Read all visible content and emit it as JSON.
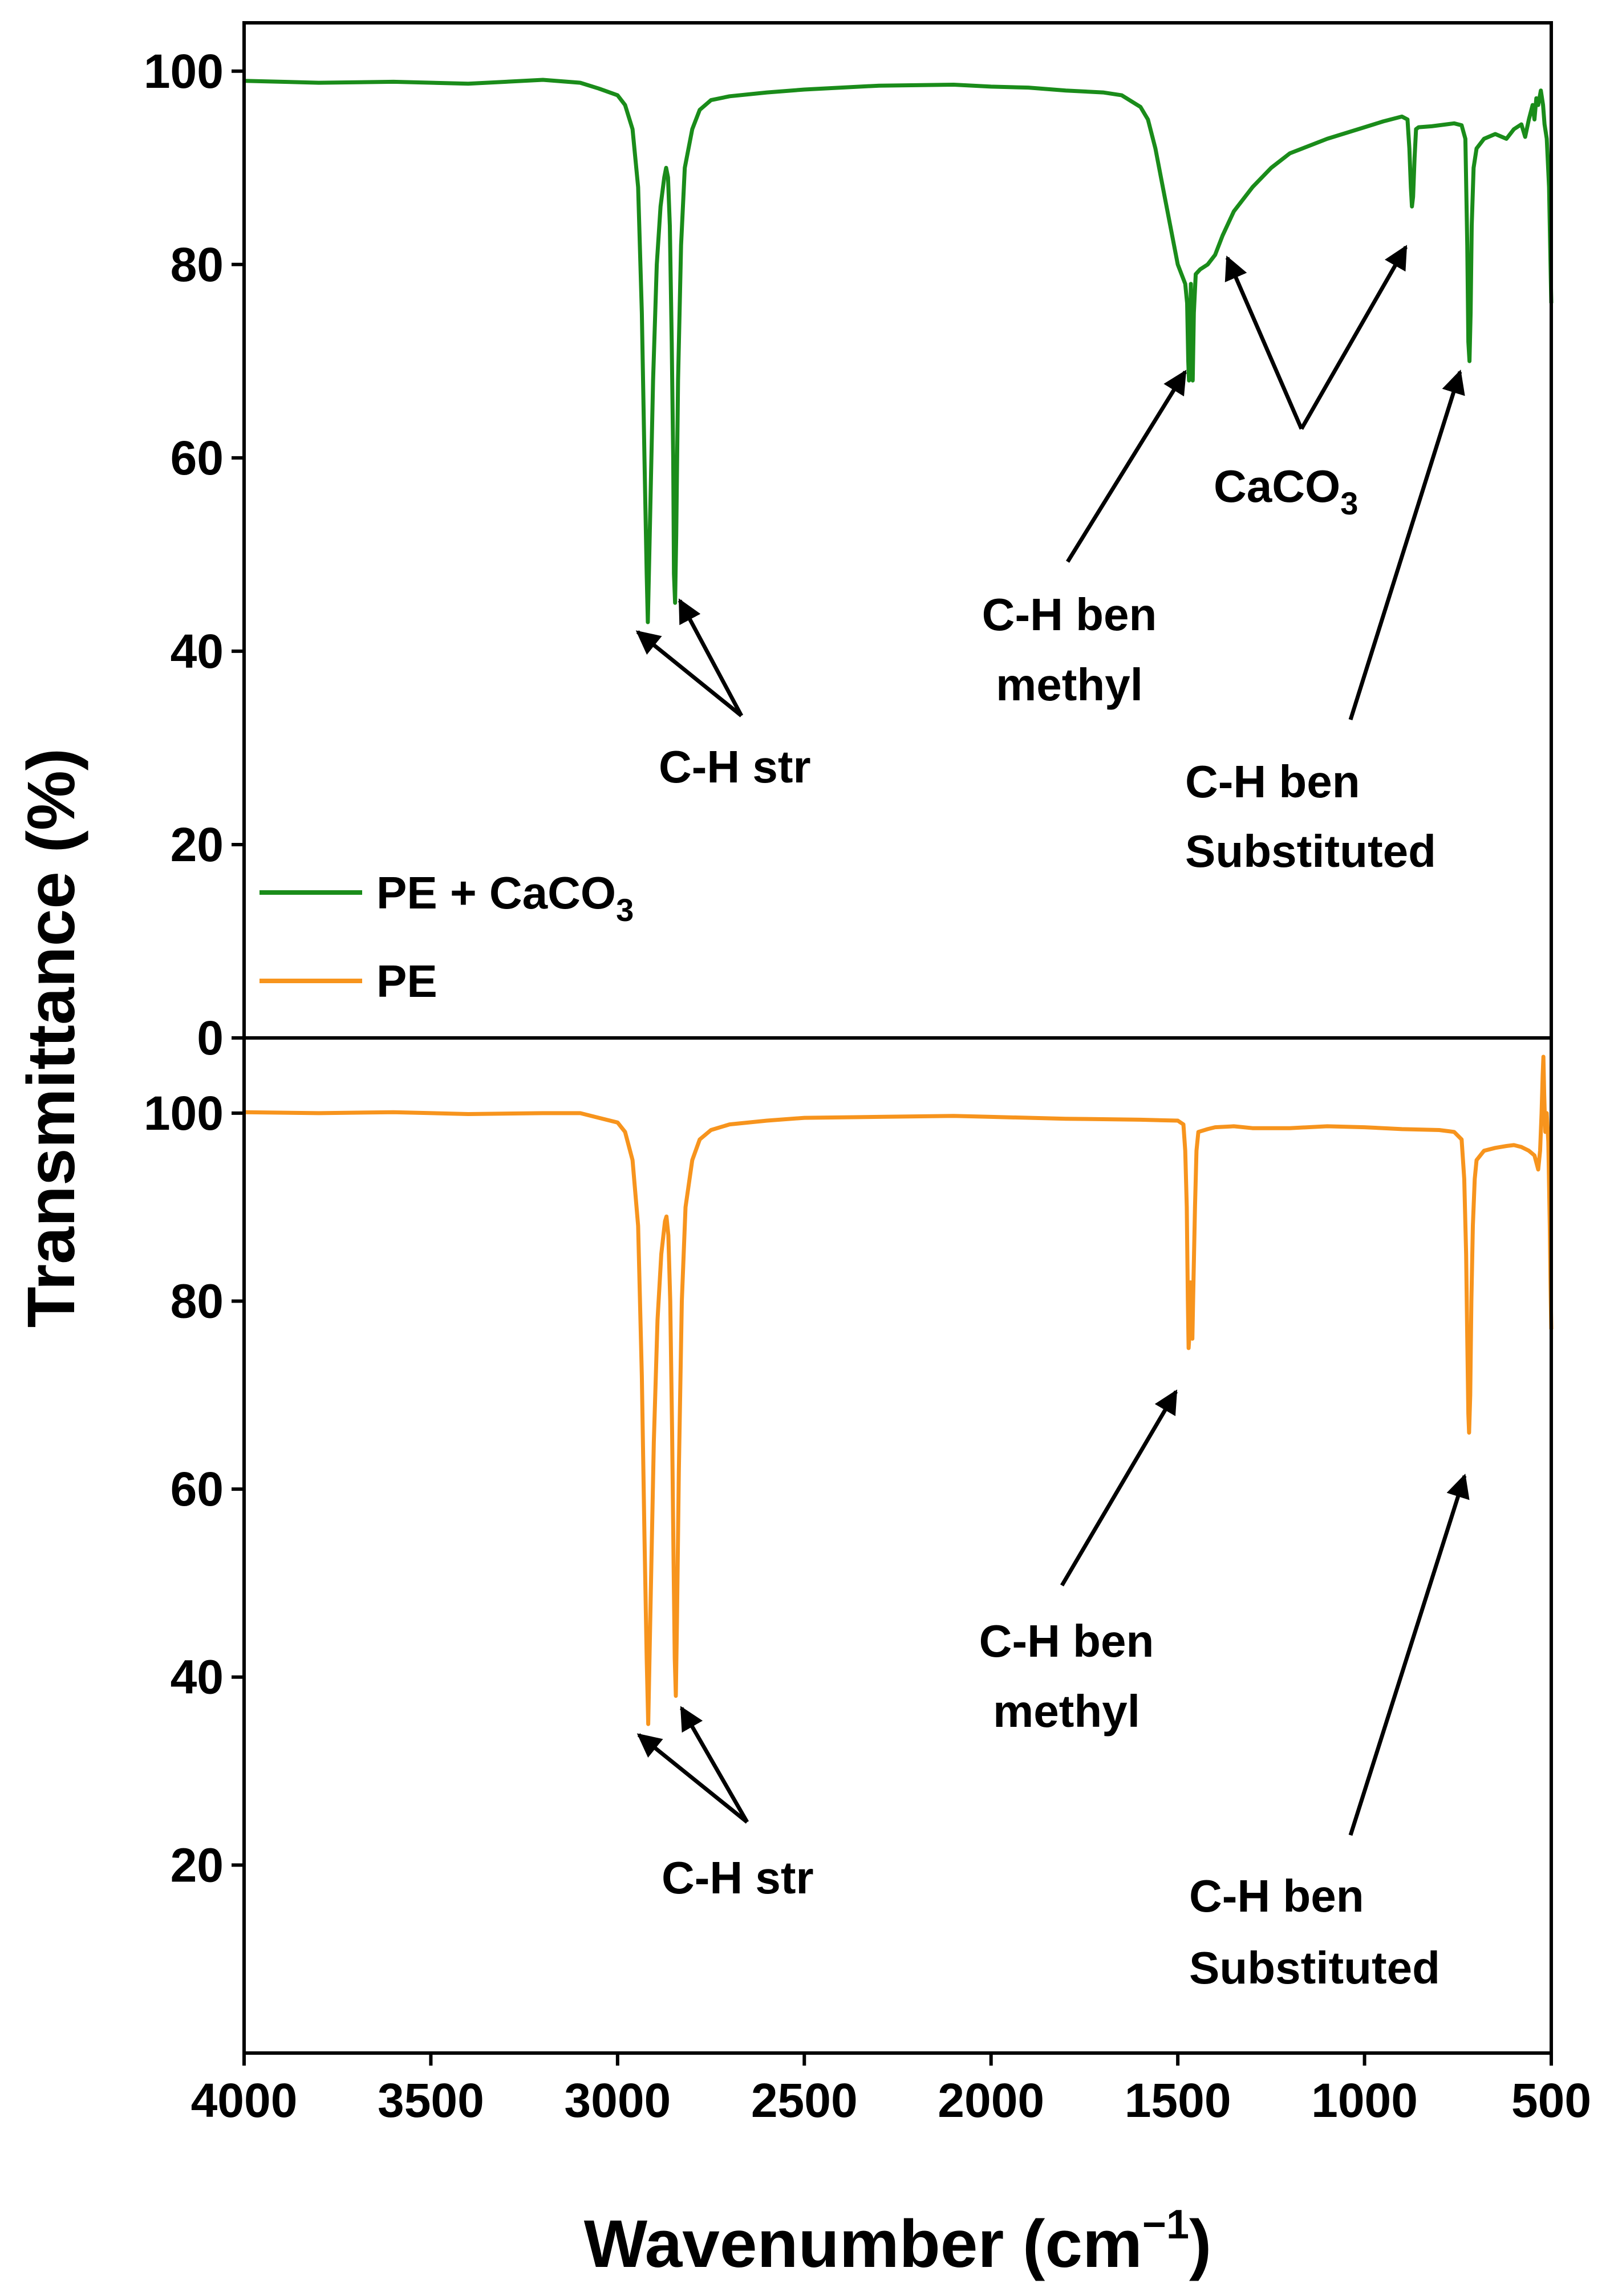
{
  "chart_data": {
    "type": "line",
    "xlabel_main": "Wavenumber (cm",
    "xlabel_sup": "−1",
    "xlabel_close": ")",
    "ylabel": "Transmittance (%)",
    "xlim": [
      4000,
      500
    ],
    "x_ticks": [
      "4000",
      "3500",
      "3000",
      "2500",
      "2000",
      "1500",
      "1000",
      "500"
    ],
    "x_tick_values": [
      4000,
      3500,
      3000,
      2500,
      2000,
      1500,
      1000,
      500
    ],
    "panels": [
      {
        "series_name": "PE + CaCO3",
        "color": "#1a8c1a",
        "ylim": [
          0,
          105
        ],
        "y_ticks": [
          "0",
          "20",
          "40",
          "60",
          "80",
          "100"
        ],
        "y_tick_values": [
          0,
          20,
          40,
          60,
          80,
          100
        ],
        "points": [
          [
            4000,
            99.0
          ],
          [
            3800,
            98.8
          ],
          [
            3600,
            98.9
          ],
          [
            3400,
            98.7
          ],
          [
            3200,
            99.1
          ],
          [
            3100,
            98.8
          ],
          [
            3050,
            98.2
          ],
          [
            3000,
            97.5
          ],
          [
            2980,
            96.5
          ],
          [
            2960,
            94
          ],
          [
            2945,
            88
          ],
          [
            2935,
            75
          ],
          [
            2928,
            60
          ],
          [
            2922,
            48
          ],
          [
            2919,
            43
          ],
          [
            2915,
            50
          ],
          [
            2905,
            68
          ],
          [
            2895,
            80
          ],
          [
            2885,
            86
          ],
          [
            2875,
            89
          ],
          [
            2870,
            90
          ],
          [
            2865,
            89
          ],
          [
            2860,
            84
          ],
          [
            2855,
            72
          ],
          [
            2851,
            60
          ],
          [
            2849,
            48
          ],
          [
            2846,
            45
          ],
          [
            2843,
            52
          ],
          [
            2838,
            68
          ],
          [
            2830,
            82
          ],
          [
            2820,
            90
          ],
          [
            2800,
            94
          ],
          [
            2780,
            96
          ],
          [
            2750,
            97
          ],
          [
            2700,
            97.4
          ],
          [
            2600,
            97.8
          ],
          [
            2500,
            98.1
          ],
          [
            2300,
            98.5
          ],
          [
            2100,
            98.6
          ],
          [
            2000,
            98.4
          ],
          [
            1900,
            98.3
          ],
          [
            1800,
            98.0
          ],
          [
            1700,
            97.8
          ],
          [
            1650,
            97.5
          ],
          [
            1600,
            96.3
          ],
          [
            1580,
            95
          ],
          [
            1560,
            92
          ],
          [
            1540,
            88
          ],
          [
            1520,
            84
          ],
          [
            1500,
            80
          ],
          [
            1480,
            78
          ],
          [
            1475,
            76
          ],
          [
            1472,
            70
          ],
          [
            1470,
            68
          ],
          [
            1467,
            72
          ],
          [
            1465,
            78
          ],
          [
            1462,
            71
          ],
          [
            1460,
            68
          ],
          [
            1457,
            75
          ],
          [
            1452,
            79
          ],
          [
            1440,
            79.5
          ],
          [
            1420,
            80
          ],
          [
            1400,
            81
          ],
          [
            1380,
            83
          ],
          [
            1350,
            85.5
          ],
          [
            1300,
            88
          ],
          [
            1250,
            90
          ],
          [
            1200,
            91.5
          ],
          [
            1100,
            93
          ],
          [
            1000,
            94.2
          ],
          [
            950,
            94.8
          ],
          [
            900,
            95.3
          ],
          [
            885,
            95
          ],
          [
            880,
            92
          ],
          [
            876,
            88
          ],
          [
            873,
            86
          ],
          [
            870,
            87
          ],
          [
            866,
            91
          ],
          [
            862,
            94
          ],
          [
            855,
            94.2
          ],
          [
            820,
            94.3
          ],
          [
            780,
            94.5
          ],
          [
            760,
            94.6
          ],
          [
            740,
            94.4
          ],
          [
            730,
            93
          ],
          [
            725,
            82
          ],
          [
            722,
            72
          ],
          [
            719,
            70
          ],
          [
            716,
            75
          ],
          [
            713,
            84
          ],
          [
            708,
            90
          ],
          [
            700,
            92
          ],
          [
            680,
            93
          ],
          [
            650,
            93.5
          ],
          [
            620,
            93
          ],
          [
            600,
            94
          ],
          [
            580,
            94.5
          ],
          [
            570,
            93.2
          ],
          [
            560,
            95
          ],
          [
            550,
            96.5
          ],
          [
            545,
            95
          ],
          [
            540,
            97.2
          ],
          [
            535,
            96.5
          ],
          [
            528,
            98
          ],
          [
            522,
            96.5
          ],
          [
            518,
            94.5
          ],
          [
            512,
            93
          ],
          [
            506,
            88
          ],
          [
            502,
            80
          ],
          [
            500,
            76
          ]
        ]
      },
      {
        "series_name": "PE",
        "color": "#f7941d",
        "ylim": [
          0,
          108
        ],
        "y_ticks": [
          "20",
          "40",
          "60",
          "80",
          "100"
        ],
        "y_tick_values": [
          20,
          40,
          60,
          80,
          100
        ],
        "points": [
          [
            4000,
            100.1
          ],
          [
            3800,
            100.0
          ],
          [
            3600,
            100.1
          ],
          [
            3400,
            99.9
          ],
          [
            3200,
            100.0
          ],
          [
            3100,
            100.0
          ],
          [
            3050,
            99.5
          ],
          [
            3000,
            99.0
          ],
          [
            2980,
            98
          ],
          [
            2960,
            95
          ],
          [
            2945,
            88
          ],
          [
            2935,
            72
          ],
          [
            2928,
            55
          ],
          [
            2922,
            42
          ],
          [
            2918,
            35
          ],
          [
            2913,
            45
          ],
          [
            2903,
            65
          ],
          [
            2893,
            78
          ],
          [
            2883,
            85
          ],
          [
            2873,
            88.5
          ],
          [
            2869,
            89
          ],
          [
            2864,
            87
          ],
          [
            2859,
            80
          ],
          [
            2854,
            66
          ],
          [
            2850,
            52
          ],
          [
            2847,
            42
          ],
          [
            2844,
            38
          ],
          [
            2841,
            46
          ],
          [
            2836,
            62
          ],
          [
            2828,
            80
          ],
          [
            2818,
            90
          ],
          [
            2800,
            95
          ],
          [
            2780,
            97.2
          ],
          [
            2750,
            98.2
          ],
          [
            2700,
            98.8
          ],
          [
            2600,
            99.2
          ],
          [
            2500,
            99.5
          ],
          [
            2300,
            99.6
          ],
          [
            2100,
            99.7
          ],
          [
            2000,
            99.6
          ],
          [
            1800,
            99.4
          ],
          [
            1600,
            99.3
          ],
          [
            1500,
            99.2
          ],
          [
            1485,
            98.8
          ],
          [
            1480,
            96
          ],
          [
            1476,
            90
          ],
          [
            1473,
            80
          ],
          [
            1471,
            75
          ],
          [
            1468,
            77
          ],
          [
            1466,
            82
          ],
          [
            1463,
            79
          ],
          [
            1461,
            76
          ],
          [
            1458,
            82
          ],
          [
            1454,
            90
          ],
          [
            1450,
            96
          ],
          [
            1445,
            98
          ],
          [
            1420,
            98.3
          ],
          [
            1400,
            98.5
          ],
          [
            1350,
            98.6
          ],
          [
            1300,
            98.4
          ],
          [
            1200,
            98.4
          ],
          [
            1100,
            98.6
          ],
          [
            1000,
            98.5
          ],
          [
            900,
            98.3
          ],
          [
            800,
            98.2
          ],
          [
            760,
            98.0
          ],
          [
            740,
            97.2
          ],
          [
            733,
            93
          ],
          [
            728,
            85
          ],
          [
            725,
            76
          ],
          [
            722,
            68
          ],
          [
            720,
            66
          ],
          [
            717,
            70
          ],
          [
            714,
            80
          ],
          [
            710,
            88
          ],
          [
            705,
            93
          ],
          [
            700,
            95
          ],
          [
            680,
            96
          ],
          [
            650,
            96.3
          ],
          [
            620,
            96.5
          ],
          [
            600,
            96.6
          ],
          [
            580,
            96.4
          ],
          [
            560,
            96.0
          ],
          [
            545,
            95.5
          ],
          [
            535,
            94
          ],
          [
            530,
            96
          ],
          [
            526,
            100
          ],
          [
            523,
            104
          ],
          [
            521,
            106
          ],
          [
            519,
            102
          ],
          [
            516,
            98
          ],
          [
            512,
            100
          ],
          [
            508,
            97
          ],
          [
            504,
            88
          ],
          [
            502,
            82
          ],
          [
            500,
            77
          ]
        ]
      }
    ],
    "legend": [
      {
        "label": "PE + CaCO",
        "sub": "3",
        "color": "#1a8c1a"
      },
      {
        "label": "PE",
        "sub": "",
        "color": "#f7941d"
      }
    ],
    "annotations_top": {
      "ch_str": "C-H str",
      "ch_ben_methyl_1": "C-H ben",
      "ch_ben_methyl_2": "methyl",
      "caco3_main": "CaCO",
      "caco3_sub": "3",
      "ch_ben_sub_1": "C-H ben",
      "ch_ben_sub_2": "Substituted"
    },
    "annotations_bottom": {
      "ch_str": "C-H str",
      "ch_ben_methyl_1": "C-H ben",
      "ch_ben_methyl_2": "methyl",
      "ch_ben_sub_1": "C-H ben",
      "ch_ben_sub_2": "Substituted"
    }
  }
}
